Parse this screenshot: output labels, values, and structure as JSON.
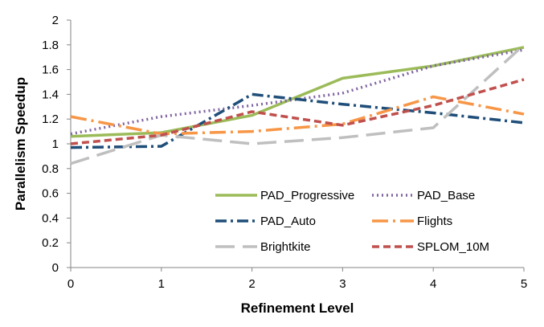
{
  "chart_data": {
    "type": "line",
    "xlabel": "Refinement Level",
    "ylabel": "Parallelism Speedup",
    "x": [
      0,
      1,
      2,
      3,
      4,
      5
    ],
    "xlim": [
      0,
      5
    ],
    "ylim": [
      0,
      2
    ],
    "yticks": [
      "0",
      "0.2",
      "0.4",
      "0.6",
      "0.8",
      "1",
      "1.2",
      "1.4",
      "1.6",
      "1.8",
      "2"
    ],
    "xticks": [
      "0",
      "1",
      "2",
      "3",
      "4",
      "5"
    ],
    "grid": false,
    "legend_position": "bottom-right, inside plot, two columns",
    "series": [
      {
        "name": "PAD_Progressive",
        "color": "#9bbb59",
        "dash": "solid",
        "values": [
          1.06,
          1.09,
          1.23,
          1.53,
          1.63,
          1.78
        ]
      },
      {
        "name": "PAD_Base",
        "color": "#8064a2",
        "dash": "dot",
        "values": [
          1.08,
          1.22,
          1.31,
          1.41,
          1.63,
          1.76
        ]
      },
      {
        "name": "PAD_Auto",
        "color": "#1f4e79",
        "dash": "dashdot",
        "values": [
          0.97,
          0.98,
          1.4,
          1.32,
          1.25,
          1.17
        ]
      },
      {
        "name": "Flights",
        "color": "#f79646",
        "dash": "longdashdot",
        "values": [
          1.22,
          1.08,
          1.1,
          1.16,
          1.38,
          1.24
        ]
      },
      {
        "name": "Brightkite",
        "color": "#bfbfbf",
        "dash": "longdash",
        "values": [
          0.84,
          1.07,
          1.0,
          1.05,
          1.13,
          1.8
        ]
      },
      {
        "name": "SPLOM_10M",
        "color": "#c0504d",
        "dash": "dash",
        "values": [
          1.0,
          1.07,
          1.26,
          1.15,
          1.31,
          1.52
        ]
      }
    ]
  }
}
